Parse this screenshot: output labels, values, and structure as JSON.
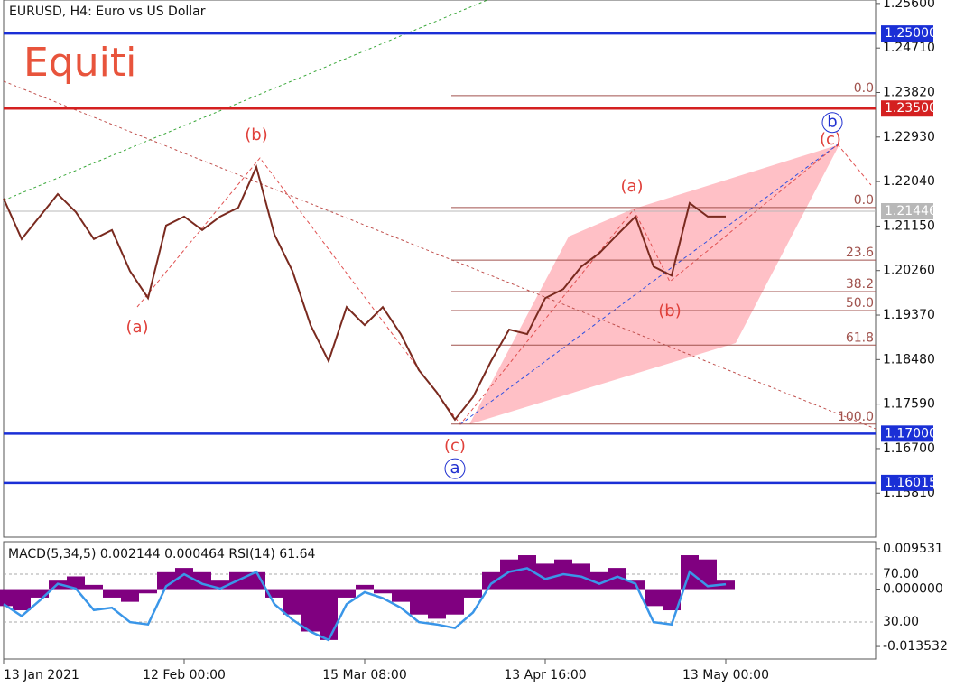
{
  "chart_data": [
    {
      "type": "line",
      "title": "EURUSD, H4:  Euro vs US Dollar",
      "watermark": "Equiti",
      "categories": [
        "13 Jan 2021",
        null,
        null,
        null,
        null,
        null,
        null,
        null,
        null,
        null,
        "12 Feb 00:00",
        null,
        null,
        null,
        null,
        null,
        null,
        null,
        null,
        null,
        "15 Mar 08:00",
        null,
        null,
        null,
        null,
        null,
        null,
        null,
        null,
        null,
        "13 Apr 16:00",
        null,
        null,
        null,
        null,
        null,
        null,
        null,
        null,
        null,
        "13 May 00:00"
      ],
      "values": [
        1.217,
        1.2089,
        1.2134,
        1.2179,
        1.2143,
        1.2089,
        1.2107,
        1.2025,
        1.1971,
        1.2116,
        1.2134,
        1.2107,
        1.2134,
        1.2152,
        1.2233,
        1.2098,
        1.2025,
        1.1917,
        1.1845,
        1.1953,
        1.1917,
        1.1953,
        1.1899,
        1.1827,
        1.1782,
        1.1728,
        1.1773,
        1.1845,
        1.1908,
        1.1899,
        1.1971,
        1.1989,
        1.2034,
        1.2061,
        1.2098,
        1.2134,
        1.2034,
        1.2016,
        1.2161,
        1.2134,
        1.2134
      ],
      "color": "#7a2a1f",
      "ylim": [
        1.1493,
        1.2567
      ],
      "yticks": [
        {
          "value": 1.256,
          "label": "1.25600"
        },
        {
          "value": 1.2471,
          "label": "1.24710"
        },
        {
          "value": 1.2382,
          "label": "1.23820"
        },
        {
          "value": 1.2293,
          "label": "1.22930"
        },
        {
          "value": 1.2204,
          "label": "1.22040"
        },
        {
          "value": 1.2115,
          "label": "1.21150"
        },
        {
          "value": 1.2026,
          "label": "1.20260"
        },
        {
          "value": 1.1937,
          "label": "1.19370"
        },
        {
          "value": 1.1848,
          "label": "1.18480"
        },
        {
          "value": 1.1759,
          "label": "1.17590"
        },
        {
          "value": 1.167,
          "label": "1.16700"
        },
        {
          "value": 1.1581,
          "label": "1.15810"
        }
      ],
      "levels": [
        {
          "value": 1.25,
          "label": "1.25000",
          "color": "#1a2fd6"
        },
        {
          "value": 1.235,
          "label": "1.23500",
          "color": "#d42020"
        },
        {
          "value": 1.21446,
          "label": "1.21446",
          "color": "#b8b8b8"
        },
        {
          "value": 1.17,
          "label": "1.17000",
          "color": "#1a2fd6"
        },
        {
          "value": 1.16015,
          "label": "1.16015",
          "color": "#1a2fd6"
        }
      ],
      "fib_levels": [
        {
          "value": 1.2376,
          "label": "0.0"
        },
        {
          "value": 1.2152,
          "label": "0.0"
        },
        {
          "value": 1.2047,
          "label": "23.6"
        },
        {
          "value": 1.1984,
          "label": "38.2"
        },
        {
          "value": 1.1946,
          "label": "50.0"
        },
        {
          "value": 1.1877,
          "label": "61.8"
        },
        {
          "value": 1.1719,
          "label": "100.0"
        }
      ],
      "annotations": [
        {
          "text": "(b)",
          "x": 14,
          "y": 1.2296
        },
        {
          "text": "(a)",
          "x": 7.4,
          "y": 1.1912
        },
        {
          "text": "(c)",
          "x": 25,
          "y": 1.1674
        },
        {
          "text": "a",
          "x": 25,
          "y": 1.163,
          "circled": true
        },
        {
          "text": "(a)",
          "x": 34.8,
          "y": 1.2193
        },
        {
          "text": "(b)",
          "x": 36.9,
          "y": 1.1944
        },
        {
          "text": "(c)",
          "x": 45.8,
          "y": 1.2287
        },
        {
          "text": "b",
          "x": 45.9,
          "y": 1.2322,
          "circled": true
        }
      ]
    },
    {
      "type": "bar",
      "label": "MACD(5,34,5) 0.002144 0.000464 RSI(14) 61.64",
      "values": [
        -0.004,
        -0.005,
        -0.002,
        0.002,
        0.003,
        0.001,
        -0.002,
        -0.003,
        -0.001,
        0.004,
        0.005,
        0.004,
        0.002,
        0.004,
        0.004,
        -0.002,
        -0.006,
        -0.01,
        -0.012,
        -0.002,
        0.001,
        -0.001,
        -0.003,
        -0.006,
        -0.007,
        -0.006,
        -0.002,
        0.004,
        0.007,
        0.008,
        0.006,
        0.007,
        0.006,
        0.004,
        0.005,
        0.002,
        -0.004,
        -0.005,
        0.008,
        0.007,
        0.002
      ],
      "color": "#800080",
      "ylim": [
        -0.0165,
        0.0112
      ],
      "yticks": [
        {
          "value": 0.009531,
          "label": "0.009531"
        },
        {
          "value": 0,
          "label": "0.000000"
        },
        {
          "value": -0.013532,
          "label": "-0.013532"
        }
      ],
      "rsi": [
        45,
        35,
        48,
        62,
        58,
        40,
        42,
        30,
        28,
        60,
        70,
        62,
        58,
        65,
        72,
        45,
        32,
        22,
        15,
        45,
        55,
        50,
        42,
        30,
        28,
        25,
        38,
        62,
        72,
        75,
        66,
        70,
        68,
        62,
        68,
        62,
        30,
        28,
        72,
        60,
        61.64
      ],
      "rsi_color": "#3a96e8",
      "y2lim": [
        -0.9,
        97.2
      ],
      "y2ticks": [
        {
          "value": 70,
          "label": "70.00"
        },
        {
          "value": 30,
          "label": "30.00"
        }
      ]
    }
  ]
}
